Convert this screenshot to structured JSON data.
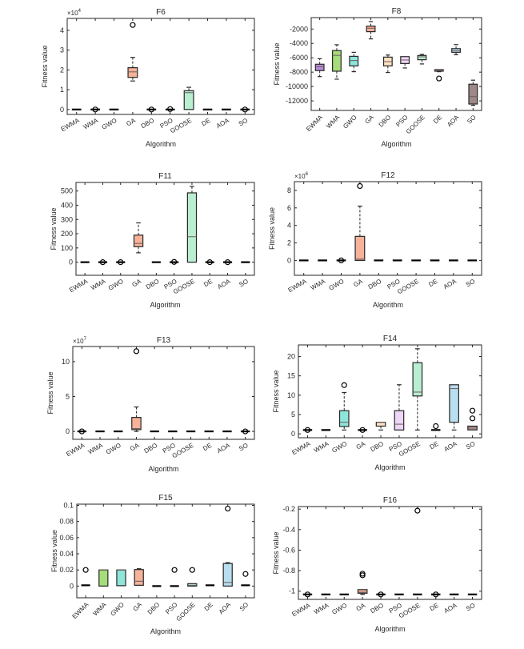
{
  "chart_data": {
    "type": "box",
    "categories": [
      "EWMA",
      "WMA",
      "GWO",
      "GA",
      "DBO",
      "PSO",
      "GOOSE",
      "DE",
      "AOA",
      "SO"
    ],
    "colors": [
      "#b98ad8",
      "#a6dd7a",
      "#8ee6da",
      "#f7b29a",
      "#fde2c4",
      "#eed6f6",
      "#b9eed0",
      "#f5c4d4",
      "#b8def0",
      "#9e8888"
    ],
    "charts": [
      {
        "title": "F6",
        "xlabel": "Algorithm",
        "ylabel": "Fitness value",
        "exponent": "×10",
        "exponent_power": "4",
        "ylim": [
          -0.25,
          4.6
        ],
        "yticks": [
          0,
          1,
          2,
          3,
          4
        ],
        "tick_rotation": 30,
        "boxes": [
          [
            0,
            0,
            0,
            0,
            0
          ],
          [
            0,
            0,
            0,
            0,
            0
          ],
          [
            0,
            0,
            0,
            0,
            0
          ],
          [
            1.44,
            1.62,
            1.9,
            2.11,
            2.63
          ],
          [
            0,
            0,
            0,
            0,
            0
          ],
          [
            0,
            0,
            0,
            0,
            0
          ],
          [
            0,
            0,
            0.85,
            0.95,
            1.12
          ],
          [
            0,
            0,
            0,
            0,
            0
          ],
          [
            0,
            0,
            0,
            0,
            0
          ],
          [
            0,
            0,
            0,
            0,
            0
          ]
        ],
        "outliers": [
          [],
          [
            0
          ],
          [],
          [
            4.27
          ],
          [
            0
          ],
          [
            0.02
          ],
          [],
          [],
          [],
          [
            0
          ]
        ]
      },
      {
        "title": "F8",
        "xlabel": "Algorithm",
        "ylabel": "Fitness value",
        "exponent": "",
        "exponent_power": "",
        "ylim": [
          -13330,
          -410
        ],
        "yticks": [
          -12000,
          -10000,
          -8000,
          -6000,
          -4000,
          -2000
        ],
        "tick_rotation": 45,
        "boxes": [
          [
            -8620,
            -7790,
            -7240,
            -6900,
            -6130
          ],
          [
            -8980,
            -7870,
            -5660,
            -5000,
            -4190
          ],
          [
            -7940,
            -7130,
            -6390,
            -5800,
            -5240
          ],
          [
            -3370,
            -2370,
            -1890,
            -1590,
            -960
          ],
          [
            -8050,
            -7130,
            -6540,
            -5910,
            -5620
          ],
          [
            -7420,
            -6800,
            -6310,
            -5840,
            -5840
          ],
          [
            -6860,
            -6270,
            -5870,
            -5680,
            -5530
          ],
          [
            -7940,
            -7870,
            -7790,
            -7650,
            -7650
          ],
          [
            -5580,
            -5240,
            -5020,
            -4730,
            -4170
          ],
          [
            -12620,
            -12440,
            -11410,
            -9680,
            -9120
          ]
        ],
        "outliers": [
          [],
          [],
          [],
          [],
          [],
          [],
          [],
          [
            -8880
          ],
          [],
          []
        ]
      },
      {
        "title": "F11",
        "xlabel": "Algorithm",
        "ylabel": "Fitness value",
        "exponent": "",
        "exponent_power": "",
        "ylim": [
          -92,
          560
        ],
        "yticks": [
          0,
          100,
          200,
          300,
          400,
          500
        ],
        "tick_rotation": 30,
        "boxes": [
          [
            0,
            0,
            0,
            0,
            0
          ],
          [
            0,
            0,
            0,
            0,
            0
          ],
          [
            0,
            0,
            0,
            0,
            0
          ],
          [
            66,
            109,
            132,
            190,
            276
          ],
          [
            0,
            0,
            0,
            0,
            0
          ],
          [
            0,
            0,
            0,
            0,
            0
          ],
          [
            0,
            0,
            179,
            487,
            532
          ],
          [
            0,
            0,
            0,
            0,
            0
          ],
          [
            0,
            0,
            0,
            0,
            0
          ],
          [
            0,
            0,
            0,
            0,
            0
          ]
        ],
        "outliers": [
          [],
          [
            0
          ],
          [
            0
          ],
          [],
          [],
          [
            2
          ],
          [],
          [
            0
          ],
          [
            0
          ],
          []
        ]
      },
      {
        "title": "F12",
        "xlabel": "Algorithm",
        "ylabel": "Fitness value",
        "exponent": "×10",
        "exponent_power": "6",
        "ylim": [
          -1.7,
          9.0
        ],
        "yticks": [
          0,
          2,
          4,
          6,
          8
        ],
        "tick_rotation": 30,
        "boxes": [
          [
            0,
            0,
            0,
            0,
            0
          ],
          [
            0,
            0,
            0,
            0,
            0
          ],
          [
            0,
            0,
            0,
            0,
            0
          ],
          [
            0,
            0,
            0.15,
            2.75,
            6.2
          ],
          [
            0,
            0,
            0,
            0,
            0
          ],
          [
            0,
            0,
            0,
            0,
            0
          ],
          [
            0,
            0,
            0,
            0,
            0
          ],
          [
            0,
            0,
            0,
            0,
            0
          ],
          [
            0,
            0,
            0,
            0,
            0
          ],
          [
            0,
            0,
            0,
            0,
            0
          ]
        ],
        "outliers": [
          [],
          [],
          [
            0
          ],
          [
            8.5
          ],
          [],
          [],
          [],
          [],
          [],
          []
        ]
      },
      {
        "title": "F13",
        "xlabel": "Algorithm",
        "ylabel": "Fitness value",
        "exponent": "×10",
        "exponent_power": "7",
        "ylim": [
          -1.14,
          12.17
        ],
        "yticks": [
          0,
          5,
          10
        ],
        "tick_rotation": 30,
        "boxes": [
          [
            0,
            0,
            0,
            0,
            0
          ],
          [
            0,
            0,
            0,
            0,
            0
          ],
          [
            0,
            0,
            0,
            0,
            0
          ],
          [
            0,
            0.25,
            0.4,
            2.0,
            3.5
          ],
          [
            0,
            0,
            0,
            0,
            0
          ],
          [
            0,
            0,
            0,
            0,
            0
          ],
          [
            0,
            0,
            0,
            0,
            0
          ],
          [
            0,
            0,
            0,
            0,
            0
          ],
          [
            0,
            0,
            0,
            0,
            0
          ],
          [
            0,
            0,
            0,
            0,
            0
          ]
        ],
        "outliers": [
          [
            0
          ],
          [],
          [],
          [
            11.5
          ],
          [],
          [],
          [],
          [],
          [],
          [
            0
          ]
        ]
      },
      {
        "title": "F14",
        "xlabel": "Algorithm",
        "ylabel": "Fitness value",
        "exponent": "",
        "exponent_power": "",
        "ylim": [
          -1,
          23
        ],
        "yticks": [
          0,
          5,
          10,
          15,
          20
        ],
        "tick_rotation": 30,
        "boxes": [
          [
            1,
            1,
            1,
            1,
            1
          ],
          [
            1,
            1,
            1,
            1,
            1
          ],
          [
            1,
            1.9,
            3,
            6,
            10.7
          ],
          [
            1,
            1,
            1,
            1,
            1
          ],
          [
            1,
            2,
            3,
            3,
            3
          ],
          [
            1,
            1,
            2.5,
            6,
            12.7
          ],
          [
            1,
            9.8,
            10.8,
            18.4,
            22
          ],
          [
            1,
            1,
            1,
            1,
            1
          ],
          [
            1,
            3,
            11.7,
            12.7,
            12.7
          ],
          [
            1,
            1,
            1.1,
            2,
            2
          ]
        ],
        "outliers": [
          [
            1
          ],
          [],
          [
            12.6
          ],
          [
            1
          ],
          [],
          [],
          [],
          [
            2
          ],
          [],
          [
            4,
            6
          ]
        ]
      },
      {
        "title": "F15",
        "xlabel": "Algorithm",
        "ylabel": "Fitness value",
        "exponent": "",
        "exponent_power": "",
        "ylim": [
          -0.0145,
          0.1015
        ],
        "yticks": [
          0,
          0.02,
          0.04,
          0.06,
          0.08,
          0.1
        ],
        "tick_rotation": 45,
        "boxes": [
          [
            0.001,
            0.001,
            0.001,
            0.001,
            0.001
          ],
          [
            0,
            0,
            0.02,
            0.02,
            0.02
          ],
          [
            0.0005,
            0.0005,
            0.02,
            0.02,
            0.02
          ],
          [
            0.001,
            0.001,
            0.006,
            0.0205,
            0.0215
          ],
          [
            0,
            0,
            0,
            0,
            0
          ],
          [
            0,
            0,
            0,
            0,
            0
          ],
          [
            0,
            0,
            0.001,
            0.003,
            0.003
          ],
          [
            0.001,
            0.001,
            0.001,
            0.001,
            0.001
          ],
          [
            0,
            0,
            0.0045,
            0.028,
            0.029
          ],
          [
            0.001,
            0.001,
            0.001,
            0.001,
            0.001
          ]
        ],
        "outliers": [
          [
            0.02
          ],
          [],
          [],
          [],
          [],
          [
            0.02
          ],
          [
            0.02
          ],
          [],
          [
            0.096
          ],
          [
            0.015
          ]
        ]
      },
      {
        "title": "F16",
        "xlabel": "Algorithm",
        "ylabel": "Fitness value",
        "exponent": "",
        "exponent_power": "",
        "ylim": [
          -1.08,
          -0.175
        ],
        "yticks": [
          -1,
          -0.8,
          -0.6,
          -0.4,
          -0.2
        ],
        "tick_rotation": 30,
        "boxes": [
          [
            -1.0316,
            -1.0316,
            -1.0316,
            -1.0316,
            -1.0316
          ],
          [
            -1.0316,
            -1.0316,
            -1.0316,
            -1.0316,
            -1.0316
          ],
          [
            -1.0316,
            -1.0316,
            -1.0316,
            -1.0316,
            -1.0316
          ],
          [
            -1.0316,
            -1.02,
            -1.01,
            -0.985,
            -0.985
          ],
          [
            -1.0316,
            -1.0316,
            -1.0316,
            -1.0316,
            -1.0316
          ],
          [
            -1.0316,
            -1.0316,
            -1.0316,
            -1.0316,
            -1.0316
          ],
          [
            -1.0316,
            -1.0316,
            -1.0316,
            -1.0316,
            -1.0316
          ],
          [
            -1.0316,
            -1.0316,
            -1.0316,
            -1.0316,
            -1.0316
          ],
          [
            -1.0316,
            -1.0316,
            -1.0316,
            -1.0316,
            -1.0316
          ],
          [
            -1.0316,
            -1.0316,
            -1.0316,
            -1.0316,
            -1.0316
          ]
        ],
        "outliers": [
          [
            -1.0316
          ],
          [],
          [],
          [
            -0.83,
            -0.845
          ],
          [
            -1.0316
          ],
          [],
          [
            -0.215
          ],
          [
            -1.0316
          ],
          [],
          []
        ]
      }
    ]
  }
}
